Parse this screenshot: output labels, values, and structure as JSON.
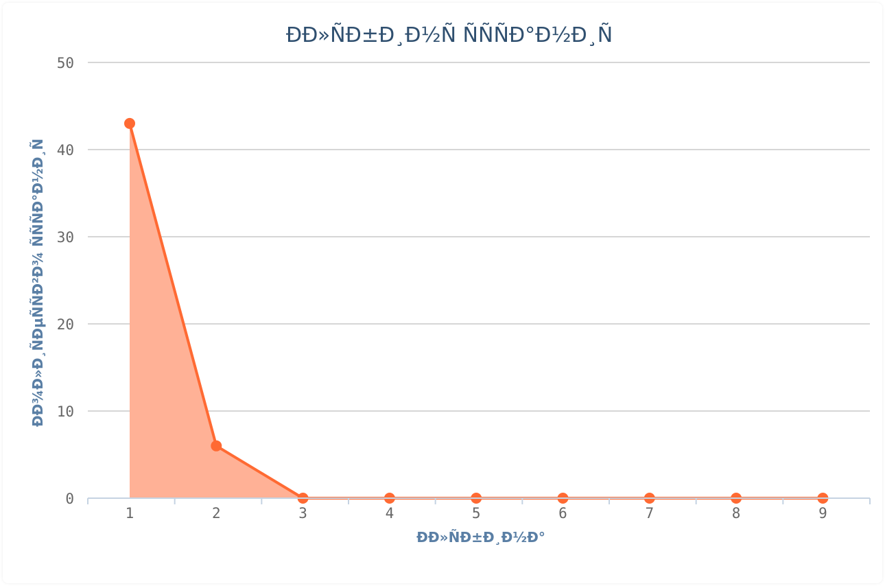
{
  "chart_data": {
    "type": "area",
    "title": "ÐÐ»ÑÐ±Ð¸Ð½Ñ ÑÑÑÐ°Ð½Ð¸Ñ",
    "xlabel": "ÐÐ»ÑÐ±Ð¸Ð½Ð°",
    "ylabel": "ÐÐ¾Ð»Ð¸ÑÐµÑÑÐ²Ð¾ ÑÑÑÐ°Ð½Ð¸Ñ",
    "x": [
      1,
      2,
      3,
      4,
      5,
      6,
      7,
      8,
      9
    ],
    "series": [
      {
        "values": [
          43,
          6,
          0,
          0,
          0,
          0,
          0,
          0,
          0
        ]
      }
    ],
    "ylim": [
      0,
      50
    ],
    "yticks": [
      0,
      10,
      20,
      30,
      40,
      50
    ],
    "xticks": [
      "1",
      "2",
      "3",
      "4",
      "5",
      "6",
      "7",
      "8",
      "9"
    ],
    "grid": true,
    "legend": "none",
    "colors": {
      "line": "#ff6a33",
      "fill": "#ffb196"
    }
  }
}
